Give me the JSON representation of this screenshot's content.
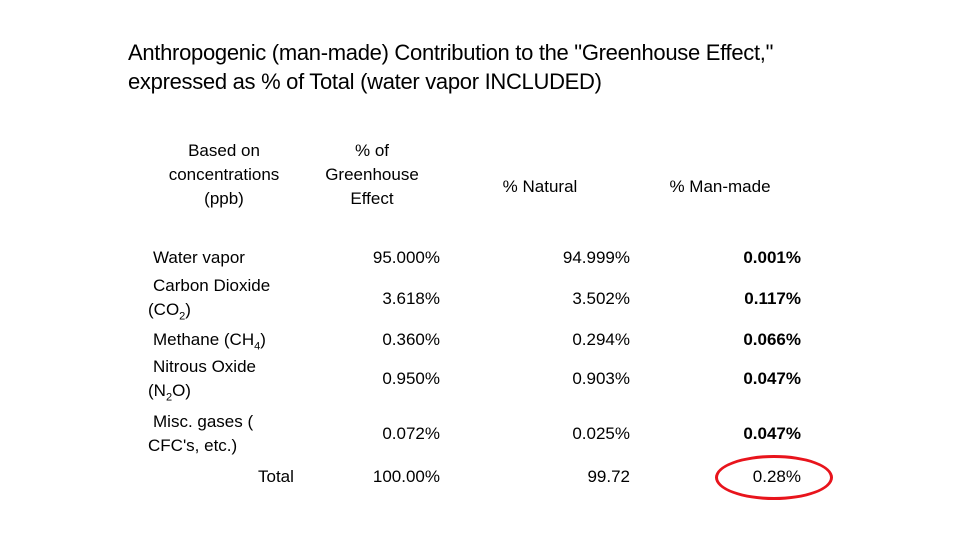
{
  "title": "Anthropogenic (man-made) Contribution to the \"Greenhouse Effect,\" expressed as % of Total (water vapor INCLUDED)",
  "headers": {
    "basis": [
      "Based on",
      "concentrations",
      "(ppb)"
    ],
    "percent_effect": [
      "% of",
      "Greenhouse",
      "Effect"
    ],
    "natural": "% Natural",
    "man_made": "% Man-made"
  },
  "rows": [
    {
      "label_lines": [
        "Water vapor"
      ],
      "effect": "95.000%",
      "natural": "94.999%",
      "man_made": "0.001%"
    },
    {
      "label_lines": [
        "Carbon Dioxide",
        "(CO",
        "2",
        ")"
      ],
      "effect": "3.618%",
      "natural": "3.502%",
      "man_made": "0.117%"
    },
    {
      "label_lines": [
        "Methane (CH",
        "4",
        ")"
      ],
      "effect": "0.360%",
      "natural": "0.294%",
      "man_made": "0.066%"
    },
    {
      "label_lines": [
        "Nitrous Oxide",
        "(N",
        "2",
        "O)"
      ],
      "effect": "0.950%",
      "natural": "0.903%",
      "man_made": "0.047%"
    },
    {
      "label_lines": [
        "Misc. gases (",
        "CFC's, etc.)"
      ],
      "effect": "0.072%",
      "natural": "0.025%",
      "man_made": "0.047%"
    }
  ],
  "total": {
    "label": "Total",
    "effect": "100.00%",
    "natural": "99.72",
    "man_made": "0.28%"
  },
  "highlight_color": "#e8141c"
}
